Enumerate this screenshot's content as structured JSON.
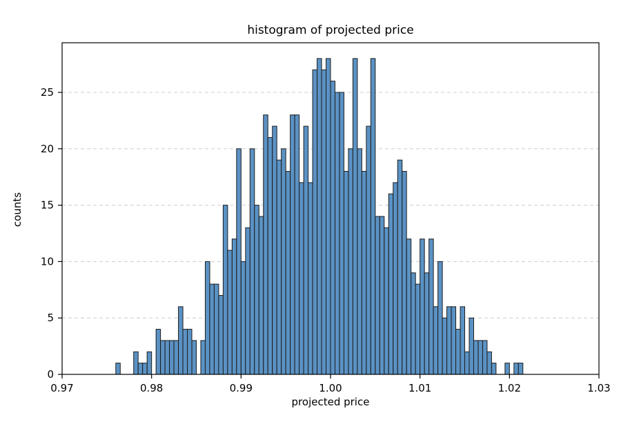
{
  "chart_data": {
    "type": "bar",
    "subtype": "histogram",
    "title": "histogram of projected price",
    "xlabel": "projected price",
    "ylabel": "counts",
    "xlim": [
      0.97,
      1.03
    ],
    "ylim": [
      0,
      29.4
    ],
    "x_ticks": [
      0.97,
      0.98,
      0.99,
      1.0,
      1.01,
      1.02,
      1.03
    ],
    "x_tick_labels": [
      "0.97",
      "0.98",
      "0.99",
      "1.00",
      "1.01",
      "1.02",
      "1.03"
    ],
    "y_ticks": [
      0,
      5,
      10,
      15,
      20,
      25
    ],
    "grid": "horizontal-dashed",
    "legend": "none",
    "bin_start": 0.976,
    "bin_width": 0.0005,
    "counts": [
      1,
      0,
      0,
      0,
      2,
      1,
      1,
      2,
      0,
      4,
      3,
      3,
      3,
      3,
      6,
      4,
      4,
      3,
      0,
      3,
      10,
      8,
      8,
      7,
      15,
      11,
      12,
      20,
      10,
      13,
      20,
      15,
      14,
      23,
      21,
      22,
      19,
      20,
      18,
      23,
      23,
      17,
      22,
      17,
      27,
      28,
      27,
      28,
      26,
      25,
      25,
      18,
      20,
      28,
      20,
      18,
      22,
      28,
      14,
      14,
      13,
      16,
      17,
      19,
      18,
      12,
      9,
      8,
      12,
      9,
      12,
      6,
      10,
      5,
      6,
      6,
      4,
      6,
      2,
      5,
      3,
      3,
      3,
      2,
      1,
      0,
      0,
      1,
      0,
      1,
      1
    ],
    "bar_color": "#5b92c4",
    "bar_edge_color": "#1c1c1c",
    "grid_color": "#cccccc",
    "axis_color": "#000000",
    "background_color": "#ffffff"
  }
}
